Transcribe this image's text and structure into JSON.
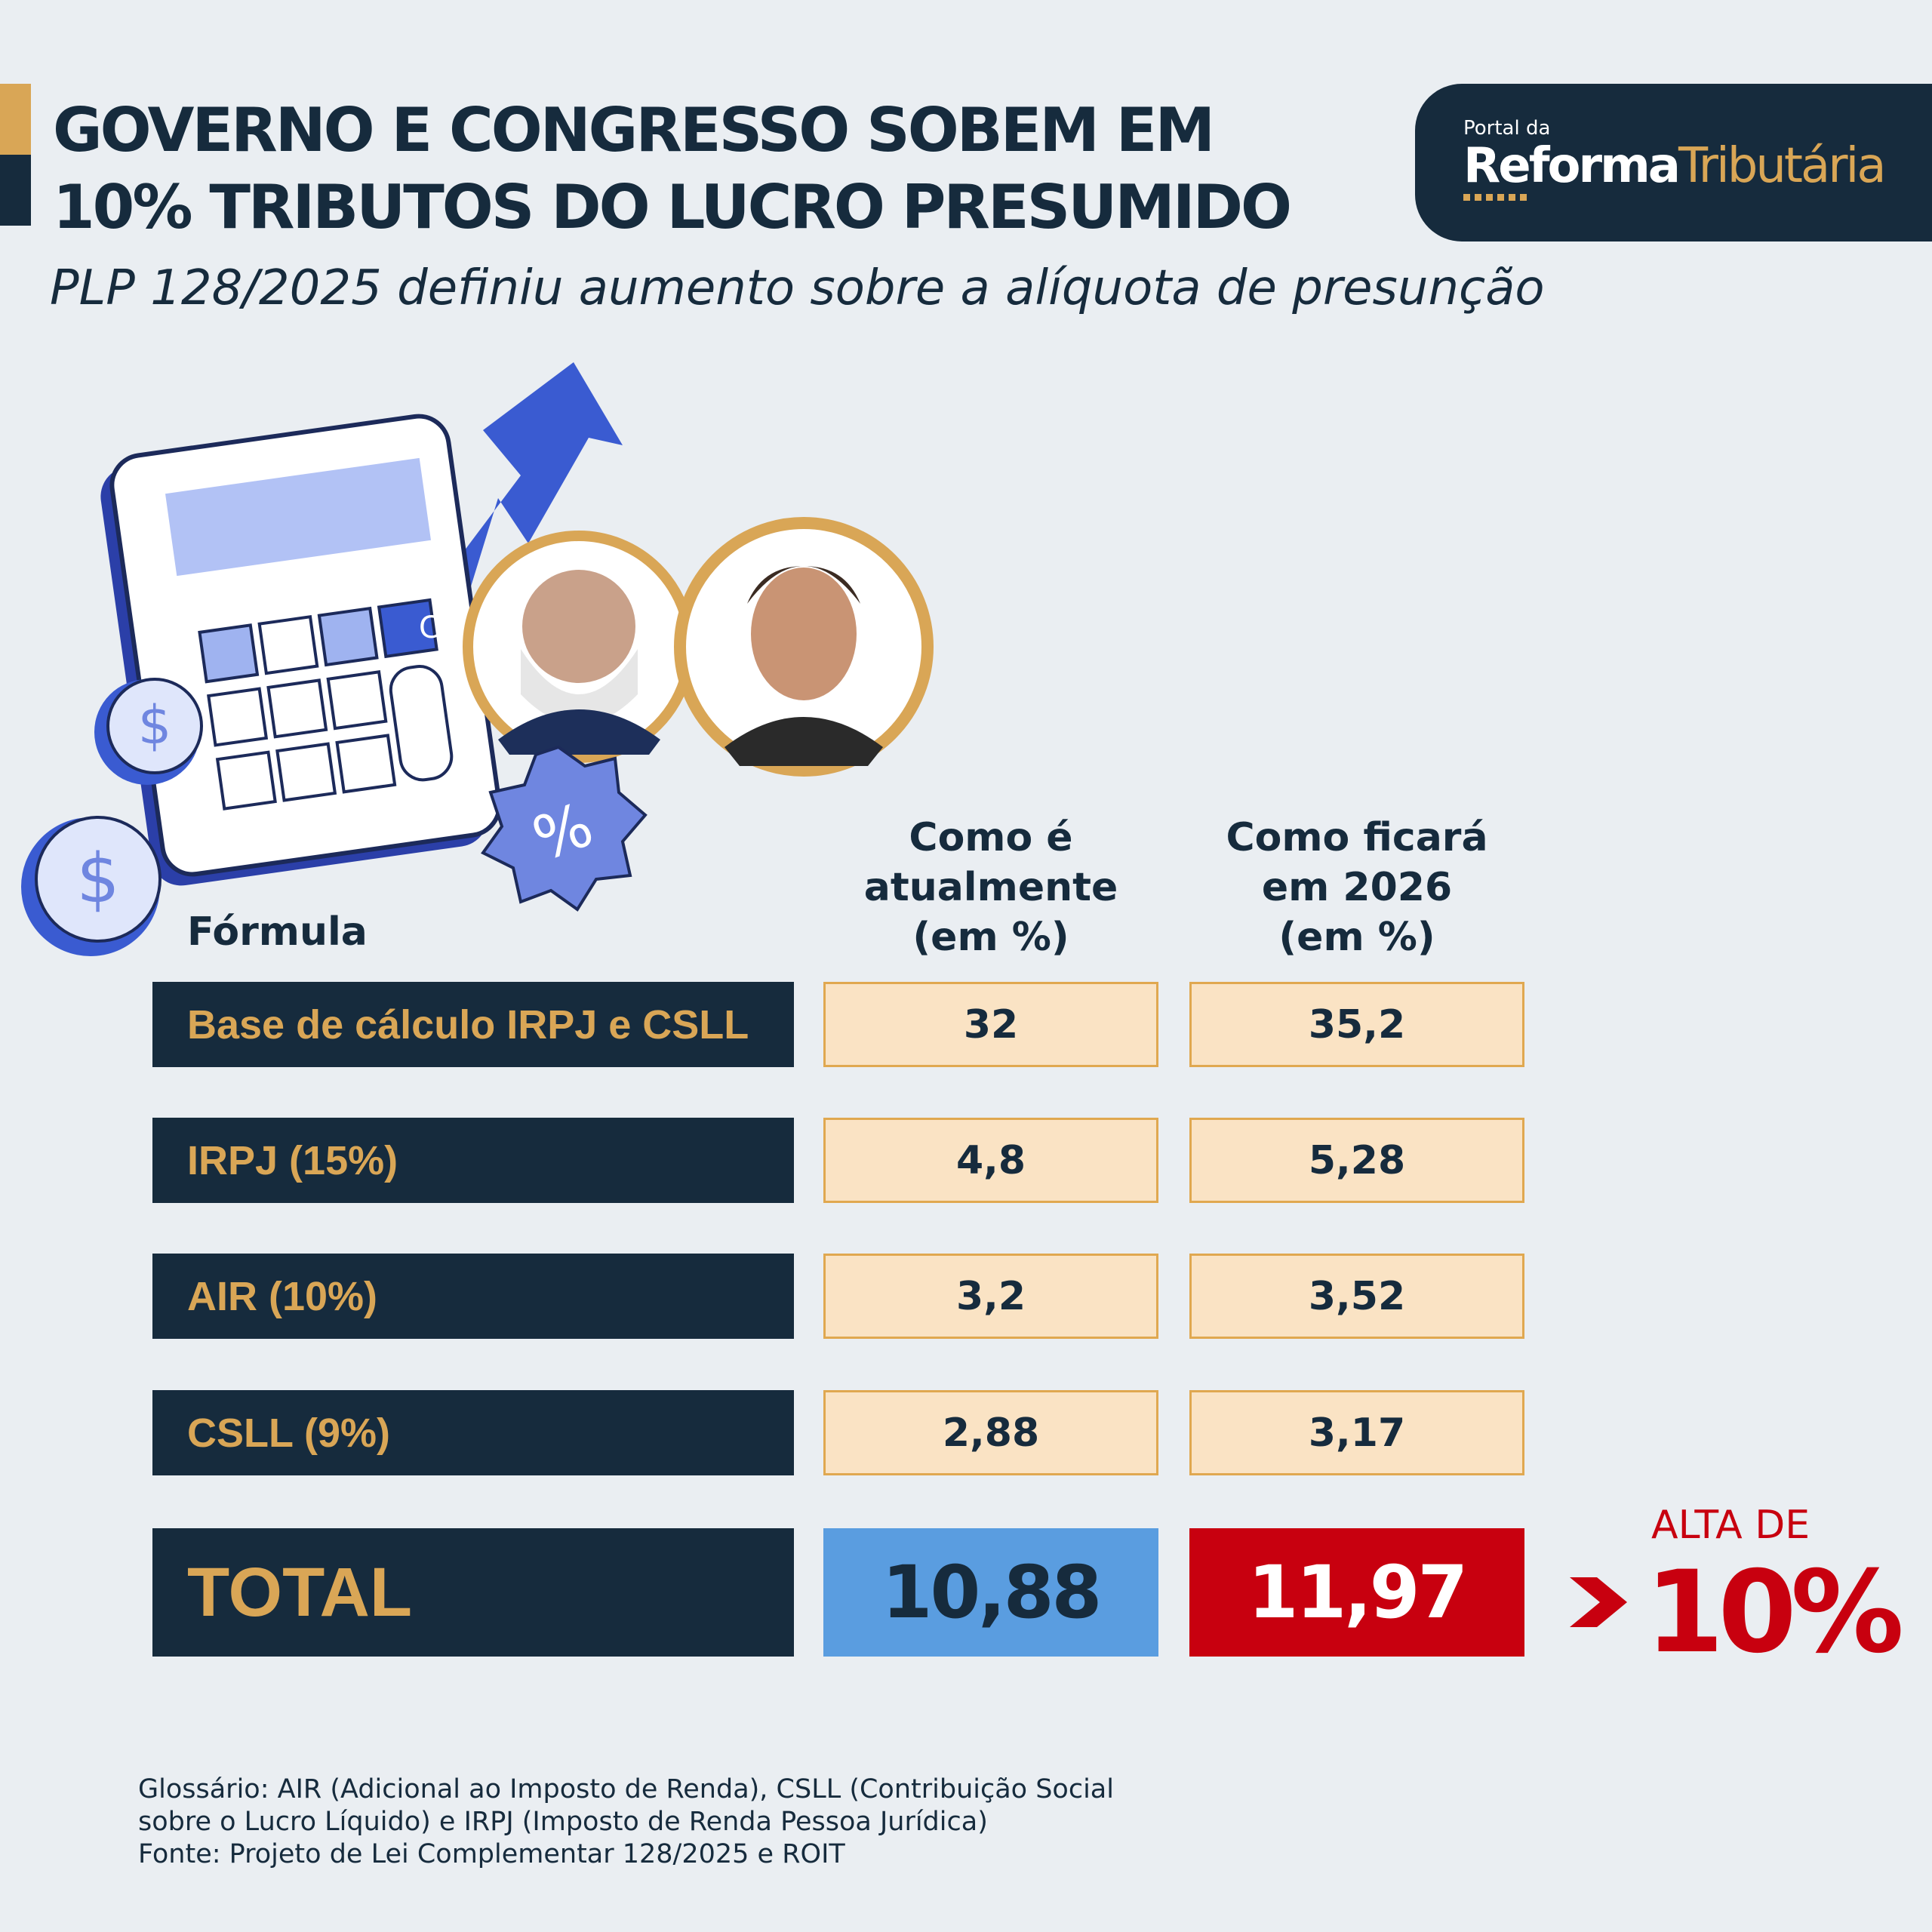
{
  "header": {
    "title_line1": "GOVERNO E CONGRESSO SOBEM EM",
    "title_line2": "10% TRIBUTOS DO LUCRO PRESUMIDO",
    "subtitle": "PLP 128/2025 definiu aumento sobre a alíquota de presunção"
  },
  "logo": {
    "small": "Portal da",
    "word1": "Reforma",
    "word2": "Tributária"
  },
  "illustration": {
    "calc_key": "C",
    "badge": "%"
  },
  "table": {
    "formula_header": "Fórmula",
    "col1_header": [
      "Como é",
      "atualmente",
      "(em %)"
    ],
    "col2_header": [
      "Como ficará",
      "em 2026",
      "(em %)"
    ],
    "rows": [
      {
        "label": "Base de cálculo IRPJ e CSLL",
        "current": "32",
        "future": "35,2"
      },
      {
        "label": "IRPJ (15%)",
        "current": "4,8",
        "future": "5,28"
      },
      {
        "label": "AIR (10%)",
        "current": "3,2",
        "future": "3,52"
      },
      {
        "label": "CSLL (9%)",
        "current": "2,88",
        "future": "3,17"
      }
    ],
    "total": {
      "label": "TOTAL",
      "current": "10,88",
      "future": "11,97"
    }
  },
  "highlight": {
    "label": "ALTA DE",
    "value": "10%"
  },
  "footer": {
    "line1": "Glossário: AIR (Adicional ao Imposto de Renda), CSLL (Contribuição Social",
    "line2": "sobre o Lucro Líquido) e IRPJ (Imposto de Renda Pessoa Jurídica)",
    "line3": "Fonte: Projeto de Lei Complementar 128/2025 e ROIT"
  },
  "colors": {
    "navy": "#162b3d",
    "gold": "#d9a656",
    "cream": "#fae3c4",
    "blue": "#5a9de0",
    "red": "#c8000f"
  }
}
